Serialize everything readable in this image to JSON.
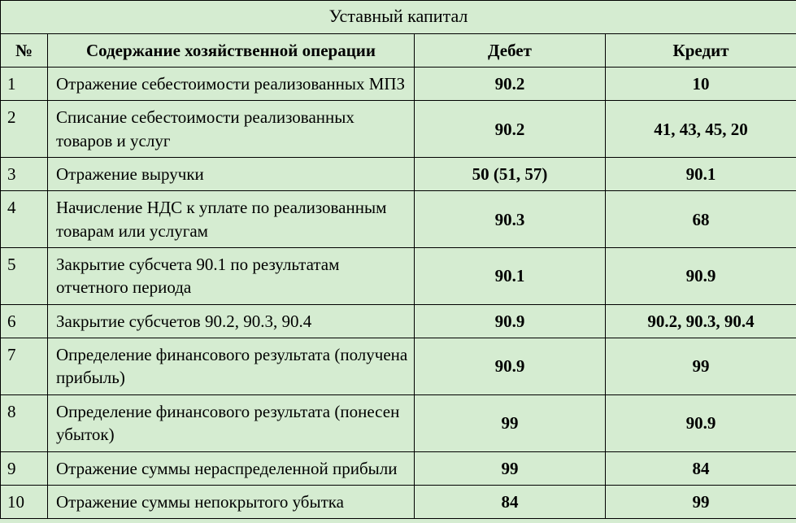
{
  "table": {
    "title": "Уставный капитал",
    "headers": {
      "num": "№",
      "desc": "Содержание хозяйственной операции",
      "debit": "Дебет",
      "credit": "Кредит"
    },
    "rows": [
      {
        "num": "1",
        "desc": "Отражение себестоимости реализованных МПЗ",
        "debit": "90.2",
        "credit": "10"
      },
      {
        "num": "2",
        "desc": "Списание себестоимости реализованных товаров и услуг",
        "debit": "90.2",
        "credit": "41, 43, 45, 20"
      },
      {
        "num": "3",
        "desc": "Отражение выручки",
        "debit": "50 (51, 57)",
        "credit": "90.1"
      },
      {
        "num": "4",
        "desc": "Начисление НДС к уплате по реализованным товарам или услугам",
        "debit": "90.3",
        "credit": "68"
      },
      {
        "num": "5",
        "desc": "Закрытие субсчета 90.1 по результатам отчетного периода",
        "debit": "90.1",
        "credit": "90.9"
      },
      {
        "num": "6",
        "desc": "Закрытие субсчетов 90.2, 90.3, 90.4",
        "debit": "90.9",
        "credit": "90.2, 90.3, 90.4"
      },
      {
        "num": "7",
        "desc": "Определение финансового результата (получена прибыль)",
        "debit": "90.9",
        "credit": "99"
      },
      {
        "num": "8",
        "desc": "Определение финансового результата (понесен убыток)",
        "debit": "99",
        "credit": "90.9"
      },
      {
        "num": "9",
        "desc": "Отражение суммы нераспределенной прибыли",
        "debit": "99",
        "credit": "84"
      },
      {
        "num": "10",
        "desc": "Отражение суммы непокрытого убытка",
        "debit": "84",
        "credit": "99"
      }
    ],
    "colors": {
      "background": "#d5ecd1",
      "border": "#000000",
      "text": "#000000"
    },
    "font": {
      "family": "Times New Roman",
      "body_size_pt": 16,
      "title_size_pt": 17
    }
  }
}
